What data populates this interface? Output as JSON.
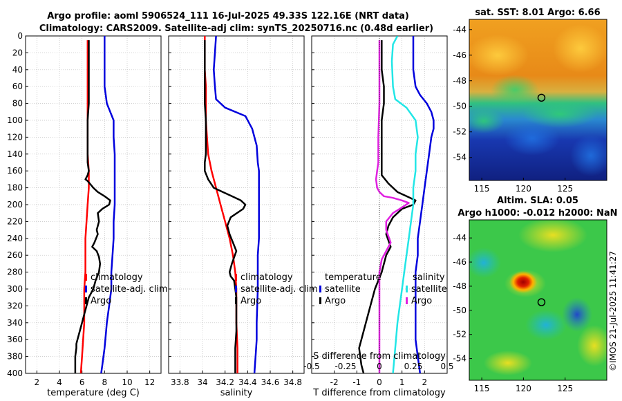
{
  "figure": {
    "title_line1": "Argo profile: aoml 5906524_111 16-Jul-2025 49.33S 122.16E (NRT data)",
    "title_line2": "Climatology: CARS2009. Satellite-adj clim: synTS_20250716.nc (0.48d earlier)",
    "credit": "©IMOS 21-Jul-2025 11:41:27"
  },
  "colors": {
    "climatology": "#ff0000",
    "satellite": "#0000dd",
    "argo": "#000000",
    "sal_satellite": "#22e6e6",
    "sal_argo": "#e020e0"
  },
  "chart_data": [
    {
      "type": "line",
      "id": "temperature",
      "xlabel": "temperature (deg C)",
      "ylabel": "",
      "xlim": [
        1,
        13
      ],
      "ylim": [
        0,
        400
      ],
      "xticks": [
        2,
        4,
        6,
        8,
        10,
        12
      ],
      "yticks": [
        0,
        20,
        40,
        60,
        80,
        100,
        120,
        140,
        160,
        180,
        200,
        220,
        240,
        260,
        280,
        300,
        320,
        340,
        360,
        380,
        400
      ],
      "legend": [
        "climatology",
        "satellite-adj. clim",
        "Argo"
      ],
      "series": [
        {
          "name": "climatology",
          "x": [
            6.5,
            6.5,
            6.5,
            6.5,
            6.5,
            6.5,
            6.5,
            6.5,
            6.6,
            6.6,
            6.5,
            6.4,
            6.3,
            6.3,
            6.3,
            6.2,
            6.2,
            6.2,
            6.1,
            6.0,
            5.9
          ],
          "y": [
            5,
            20,
            40,
            60,
            80,
            100,
            120,
            140,
            160,
            180,
            200,
            220,
            240,
            260,
            280,
            300,
            320,
            340,
            360,
            380,
            400
          ]
        },
        {
          "name": "satellite-adj. clim",
          "x": [
            8.0,
            8.0,
            8.0,
            8.0,
            8.1,
            8.2,
            8.5,
            8.8,
            8.8,
            8.9,
            8.9,
            8.9,
            8.9,
            8.8,
            8.8,
            8.7,
            8.6,
            8.6,
            8.4,
            8.2,
            8.1,
            8.0,
            7.9,
            7.8,
            7.7
          ],
          "y": [
            0,
            20,
            40,
            60,
            70,
            80,
            90,
            100,
            120,
            140,
            160,
            180,
            200,
            220,
            240,
            260,
            280,
            300,
            320,
            340,
            355,
            370,
            380,
            390,
            400
          ]
        },
        {
          "name": "Argo",
          "x": [
            6.6,
            6.6,
            6.6,
            6.6,
            6.6,
            6.5,
            6.5,
            6.5,
            6.5,
            6.5,
            6.6,
            6.5,
            6.3,
            6.5,
            7.0,
            7.4,
            8.0,
            8.5,
            8.4,
            7.8,
            7.4,
            7.5,
            7.3,
            7.4,
            7.1,
            6.9,
            7.3,
            7.5,
            7.6,
            7.5,
            7.2,
            7.0,
            6.6,
            6.4,
            6.2,
            6.0,
            5.8,
            5.6,
            5.5,
            5.5,
            5.4,
            5.4,
            5.4,
            5.4
          ],
          "y": [
            5,
            20,
            40,
            60,
            80,
            100,
            120,
            130,
            140,
            150,
            160,
            165,
            170,
            172,
            180,
            185,
            190,
            195,
            200,
            205,
            210,
            220,
            230,
            235,
            245,
            250,
            255,
            262,
            270,
            280,
            290,
            300,
            310,
            320,
            330,
            340,
            350,
            360,
            365,
            370,
            380,
            385,
            395,
            400
          ]
        }
      ]
    },
    {
      "type": "line",
      "id": "salinity",
      "xlabel": "salinity",
      "ylabel": "",
      "xlim": [
        33.7,
        34.9
      ],
      "ylim": [
        0,
        400
      ],
      "xticks": [
        33.8,
        34,
        34.2,
        34.4,
        34.6,
        34.8
      ],
      "legend": [
        "climatology",
        "satellite-adj. clim",
        "Argo"
      ],
      "series": [
        {
          "name": "climatology",
          "x": [
            34.02,
            34.02,
            34.02,
            34.03,
            34.03,
            34.03,
            34.04,
            34.05,
            34.08,
            34.12,
            34.16,
            34.2,
            34.24,
            34.27,
            34.29,
            34.3,
            34.3,
            34.3,
            34.31,
            34.31
          ],
          "y": [
            0,
            20,
            40,
            60,
            80,
            100,
            120,
            140,
            160,
            180,
            200,
            220,
            240,
            260,
            280,
            300,
            320,
            340,
            370,
            400
          ]
        },
        {
          "name": "satellite-adj. clim",
          "x": [
            34.12,
            34.11,
            34.1,
            34.11,
            34.12,
            34.2,
            34.38,
            34.44,
            34.48,
            34.49,
            34.5,
            34.5,
            34.5,
            34.5,
            34.5,
            34.49,
            34.49,
            34.48,
            34.48,
            34.47,
            34.46
          ],
          "y": [
            0,
            20,
            40,
            60,
            75,
            85,
            95,
            110,
            130,
            150,
            160,
            180,
            200,
            220,
            240,
            260,
            300,
            340,
            360,
            380,
            400
          ]
        },
        {
          "name": "Argo",
          "x": [
            34.02,
            34.02,
            34.02,
            34.02,
            34.02,
            34.03,
            34.03,
            34.03,
            34.02,
            34.02,
            34.05,
            34.1,
            34.18,
            34.26,
            34.34,
            34.38,
            34.36,
            34.25,
            34.22,
            34.24,
            34.27,
            34.3,
            34.26,
            34.24,
            34.25,
            34.28,
            34.29,
            34.3,
            34.3,
            34.3,
            34.29,
            34.29,
            34.29
          ],
          "y": [
            5,
            20,
            40,
            60,
            80,
            100,
            120,
            140,
            150,
            160,
            170,
            180,
            185,
            190,
            195,
            200,
            205,
            215,
            225,
            235,
            245,
            255,
            270,
            280,
            285,
            290,
            300,
            310,
            330,
            350,
            370,
            390,
            400
          ]
        }
      ]
    },
    {
      "type": "line",
      "id": "difference",
      "xlabel": "T difference from climatology",
      "xlabel2": "S difference from climatology",
      "ylabel": "",
      "xlim": [
        -3,
        3
      ],
      "ylim": [
        0,
        400
      ],
      "xticks": [
        -2,
        -1,
        0,
        1,
        2
      ],
      "xticks2_labels": [
        "-0.5",
        "-0.25",
        "0",
        "0.25",
        "0.5"
      ],
      "legend_t_title": "temperature",
      "legend_s_title": "salinity",
      "legend_t": [
        "satellite",
        "Argo"
      ],
      "legend_s": [
        "satellite",
        "Argo"
      ],
      "series": [
        {
          "name": "T satellite",
          "x": [
            1.5,
            1.5,
            1.5,
            1.6,
            1.8,
            2.1,
            2.3,
            2.4,
            2.4,
            2.3,
            2.2,
            2.1,
            2.0,
            1.9,
            1.8,
            1.7,
            1.7,
            1.6,
            1.6,
            1.6,
            1.6,
            1.7,
            1.8
          ],
          "y": [
            0,
            20,
            40,
            60,
            70,
            80,
            90,
            100,
            110,
            120,
            140,
            160,
            180,
            200,
            220,
            240,
            260,
            280,
            300,
            330,
            360,
            380,
            400
          ]
        },
        {
          "name": "T Argo",
          "x": [
            0.1,
            0.1,
            0.1,
            0.2,
            0.2,
            0.1,
            0.1,
            0.1,
            0.1,
            0.1,
            0.4,
            0.8,
            1.2,
            1.6,
            1.5,
            1.0,
            0.6,
            0.4,
            0.3,
            0.5,
            0.3,
            0.1,
            -0.2,
            -0.4,
            -0.6,
            -0.8,
            -0.9,
            -0.8,
            -0.7
          ],
          "y": [
            5,
            20,
            40,
            60,
            80,
            100,
            120,
            140,
            160,
            165,
            175,
            185,
            190,
            195,
            200,
            205,
            215,
            225,
            235,
            250,
            260,
            280,
            300,
            320,
            340,
            360,
            370,
            390,
            400
          ]
        },
        {
          "name": "S satellite",
          "x": [
            0.8,
            0.6,
            0.55,
            0.6,
            0.7,
            1.2,
            1.6,
            1.7,
            1.6,
            1.6,
            1.5,
            1.5,
            1.4,
            1.3,
            1.2,
            1.1,
            1.0,
            0.9,
            0.8,
            0.7,
            0.6
          ],
          "y": [
            0,
            10,
            30,
            60,
            75,
            85,
            100,
            120,
            140,
            160,
            180,
            200,
            220,
            240,
            260,
            280,
            300,
            320,
            340,
            370,
            400
          ]
        },
        {
          "name": "S Argo",
          "x": [
            0,
            0,
            0,
            -0.05,
            -0.05,
            -0.05,
            -0.1,
            -0.15,
            -0.1,
            0,
            0.2,
            0.6,
            1.0,
            1.3,
            0.9,
            0.6,
            0.3,
            0.3,
            0.5,
            0.3,
            0.1,
            0,
            0,
            0,
            0,
            0
          ],
          "y": [
            5,
            40,
            80,
            120,
            140,
            150,
            160,
            170,
            180,
            185,
            190,
            192,
            195,
            198,
            205,
            210,
            220,
            230,
            245,
            255,
            265,
            280,
            300,
            340,
            380,
            400
          ]
        }
      ]
    },
    {
      "type": "heatmap",
      "id": "sst-map",
      "title": "sat. SST: 8.01 Argo: 6.66",
      "xlim": [
        113.5,
        130
      ],
      "ylim": [
        -55.8,
        -43.2
      ],
      "xticks": [
        115,
        120,
        125
      ],
      "yticks": [
        -44,
        -46,
        -48,
        -50,
        -52,
        -54
      ],
      "marker": {
        "lon": 122.16,
        "lat": -49.33
      }
    },
    {
      "type": "heatmap",
      "id": "sla-map",
      "title": "Altim. SLA: 0.05",
      "title_line2": "Argo h1000: -0.012 h2000: NaN",
      "xlim": [
        113.5,
        130
      ],
      "ylim": [
        -55.8,
        -42.5
      ],
      "xticks": [
        115,
        120,
        125
      ],
      "yticks": [
        -44,
        -46,
        -48,
        -50,
        -52,
        -54
      ],
      "marker": {
        "lon": 122.16,
        "lat": -49.33
      }
    }
  ]
}
